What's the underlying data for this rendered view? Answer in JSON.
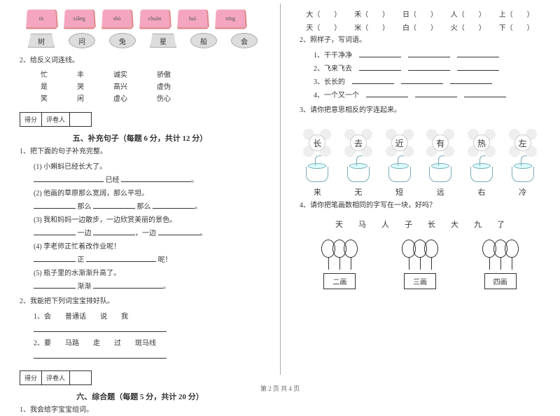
{
  "left": {
    "pinyin_cards": [
      "tù",
      "xiǎng",
      "shù",
      "chuán",
      "huì",
      "xīng"
    ],
    "shape_chars": [
      "树",
      "问",
      "兔",
      "星",
      "船",
      "会"
    ],
    "q2_title": "2、给反义词连线。",
    "pairs": [
      [
        "忙",
        "丰",
        "诚实",
        "骄傲"
      ],
      [
        "是",
        "哭",
        "高兴",
        "虚伪"
      ],
      [
        "笑",
        "闲",
        "虚心",
        "伤心"
      ]
    ],
    "score_labels": [
      "得分",
      "评卷人"
    ],
    "section5": "五、补充句子（每题 6 分，共计 12 分）",
    "s5_q1": "1、把下面的句子补充完整。",
    "s5_items": [
      "(1) 小蝌蚪已经长大了。",
      "________________ 已经 ________________。",
      "(2) 他画的草原那么宽阔，那么平坦。",
      "________________ 那么 __________ 那么 __________。",
      "(3) 我和妈妈一边散步，一边欣赏美丽的景色。",
      "__________ 一边 __________，一边 __________。",
      "(4) 李老师正忙着改作业呢！",
      "__________ 正 __________ 呢！",
      "(5) 瓶子里的水渐渐升高了。",
      "__________ 渐渐 ______________________。"
    ],
    "s5_q2": "2、我能把下列词宝宝排好队。",
    "s5_q2_items": [
      "1、会　　普通话　　说　　我",
      "2、要　　马路　　走　　过　　斑马线"
    ],
    "section6": "六、综合题（每题 5 分，共计 20 分）",
    "s6_q1": "1、我会给字宝宝组词。"
  },
  "right": {
    "chars_top": [
      [
        "大",
        "禾",
        "日",
        "人",
        "上"
      ],
      [
        "天",
        "米",
        "白",
        "火",
        "下"
      ]
    ],
    "q2_title": "2、照样子，写词语。",
    "q2_items": [
      "1、干干净净",
      "2、飞来飞去",
      "3、长长的",
      "4、一个又一个"
    ],
    "q3_title": "3、请你把意思相反的字连起来。",
    "flowers": [
      "长",
      "去",
      "近",
      "有",
      "热",
      "左"
    ],
    "cups": [
      "来",
      "无",
      "短",
      "远",
      "右",
      "冷"
    ],
    "q4_title": "4、请你把笔画数相同的字写在一块，好吗？",
    "q4_chars": [
      "天",
      "马",
      "人",
      "子",
      "长",
      "大",
      "九",
      "了"
    ],
    "stroke_boxes": [
      "二画",
      "三画",
      "四画"
    ]
  },
  "footer": "第 2 页  共 4 页"
}
